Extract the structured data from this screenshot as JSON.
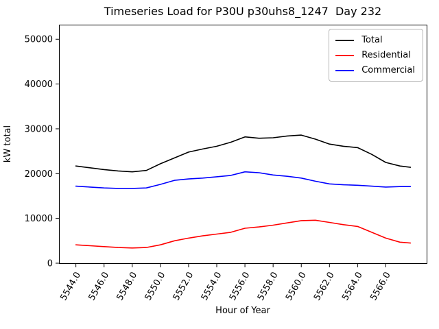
{
  "chart_data": {
    "type": "line",
    "title": "Timeseries Load for P30U p30uhs8_1247  Day 232",
    "xlabel": "Hour of Year",
    "ylabel": "kW total",
    "grid": false,
    "legend": {
      "position": "upper right",
      "entries": [
        "Total",
        "Residential",
        "Commercial"
      ]
    },
    "xlim": [
      5542.8,
      5568.9
    ],
    "ylim": [
      0,
      53250
    ],
    "x_tick_rotation": 60,
    "xticks": {
      "values": [
        5544,
        5546,
        5548,
        5550,
        5552,
        5554,
        5556,
        5558,
        5560,
        5562,
        5564,
        5566
      ],
      "labels": [
        "5544.0",
        "5546.0",
        "5548.0",
        "5550.0",
        "5552.0",
        "5554.0",
        "5556.0",
        "5558.0",
        "5560.0",
        "5562.0",
        "5564.0",
        "5566.0"
      ]
    },
    "yticks": {
      "values": [
        0,
        10000,
        20000,
        30000,
        40000,
        50000
      ],
      "labels": [
        "0",
        "10000",
        "20000",
        "30000",
        "40000",
        "50000"
      ]
    },
    "x": [
      5544,
      5545,
      5546,
      5547,
      5548,
      5549,
      5550,
      5551,
      5552,
      5553,
      5554,
      5555,
      5556,
      5557,
      5558,
      5559,
      5560,
      5561,
      5562,
      5563,
      5564,
      5565,
      5566,
      5567,
      5567.75
    ],
    "series": [
      {
        "name": "Total",
        "color": "#000000",
        "values": [
          21700,
          21300,
          20900,
          20600,
          20400,
          20700,
          22200,
          23500,
          24800,
          25500,
          26100,
          27000,
          28200,
          27900,
          28000,
          28400,
          28600,
          27700,
          26600,
          26100,
          25800,
          24300,
          22500,
          21700,
          21400
        ]
      },
      {
        "name": "Residential",
        "color": "#ff0000",
        "values": [
          4100,
          3900,
          3700,
          3500,
          3400,
          3500,
          4100,
          5000,
          5600,
          6100,
          6500,
          6900,
          7800,
          8100,
          8500,
          9000,
          9500,
          9600,
          9100,
          8600,
          8200,
          6900,
          5600,
          4700,
          4500
        ]
      },
      {
        "name": "Commercial",
        "color": "#0000ff",
        "values": [
          17200,
          17000,
          16800,
          16700,
          16700,
          16800,
          17600,
          18500,
          18800,
          19000,
          19300,
          19600,
          20400,
          20200,
          19700,
          19400,
          19000,
          18300,
          17700,
          17500,
          17400,
          17200,
          17000,
          17100,
          17100
        ]
      }
    ]
  }
}
